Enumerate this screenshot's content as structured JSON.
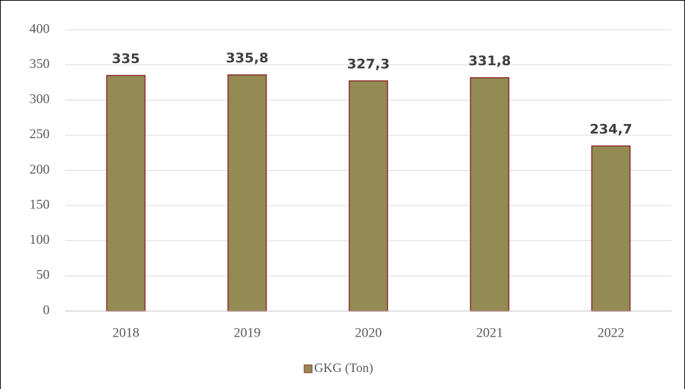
{
  "chart_data": {
    "type": "bar",
    "categories": [
      "2018",
      "2019",
      "2020",
      "2021",
      "2022"
    ],
    "series": [
      {
        "name": "GKG (Ton)",
        "color": "#948a54",
        "values": [
          335,
          335.8,
          327.3,
          331.8,
          234.7
        ],
        "value_labels": [
          "335",
          "335,8",
          "327,3",
          "331,8",
          "234,7"
        ]
      }
    ],
    "ylim": [
      0,
      400
    ],
    "yticks": [
      0,
      50,
      100,
      150,
      200,
      250,
      300,
      350,
      400
    ],
    "grid": true,
    "legend": "bottom"
  }
}
